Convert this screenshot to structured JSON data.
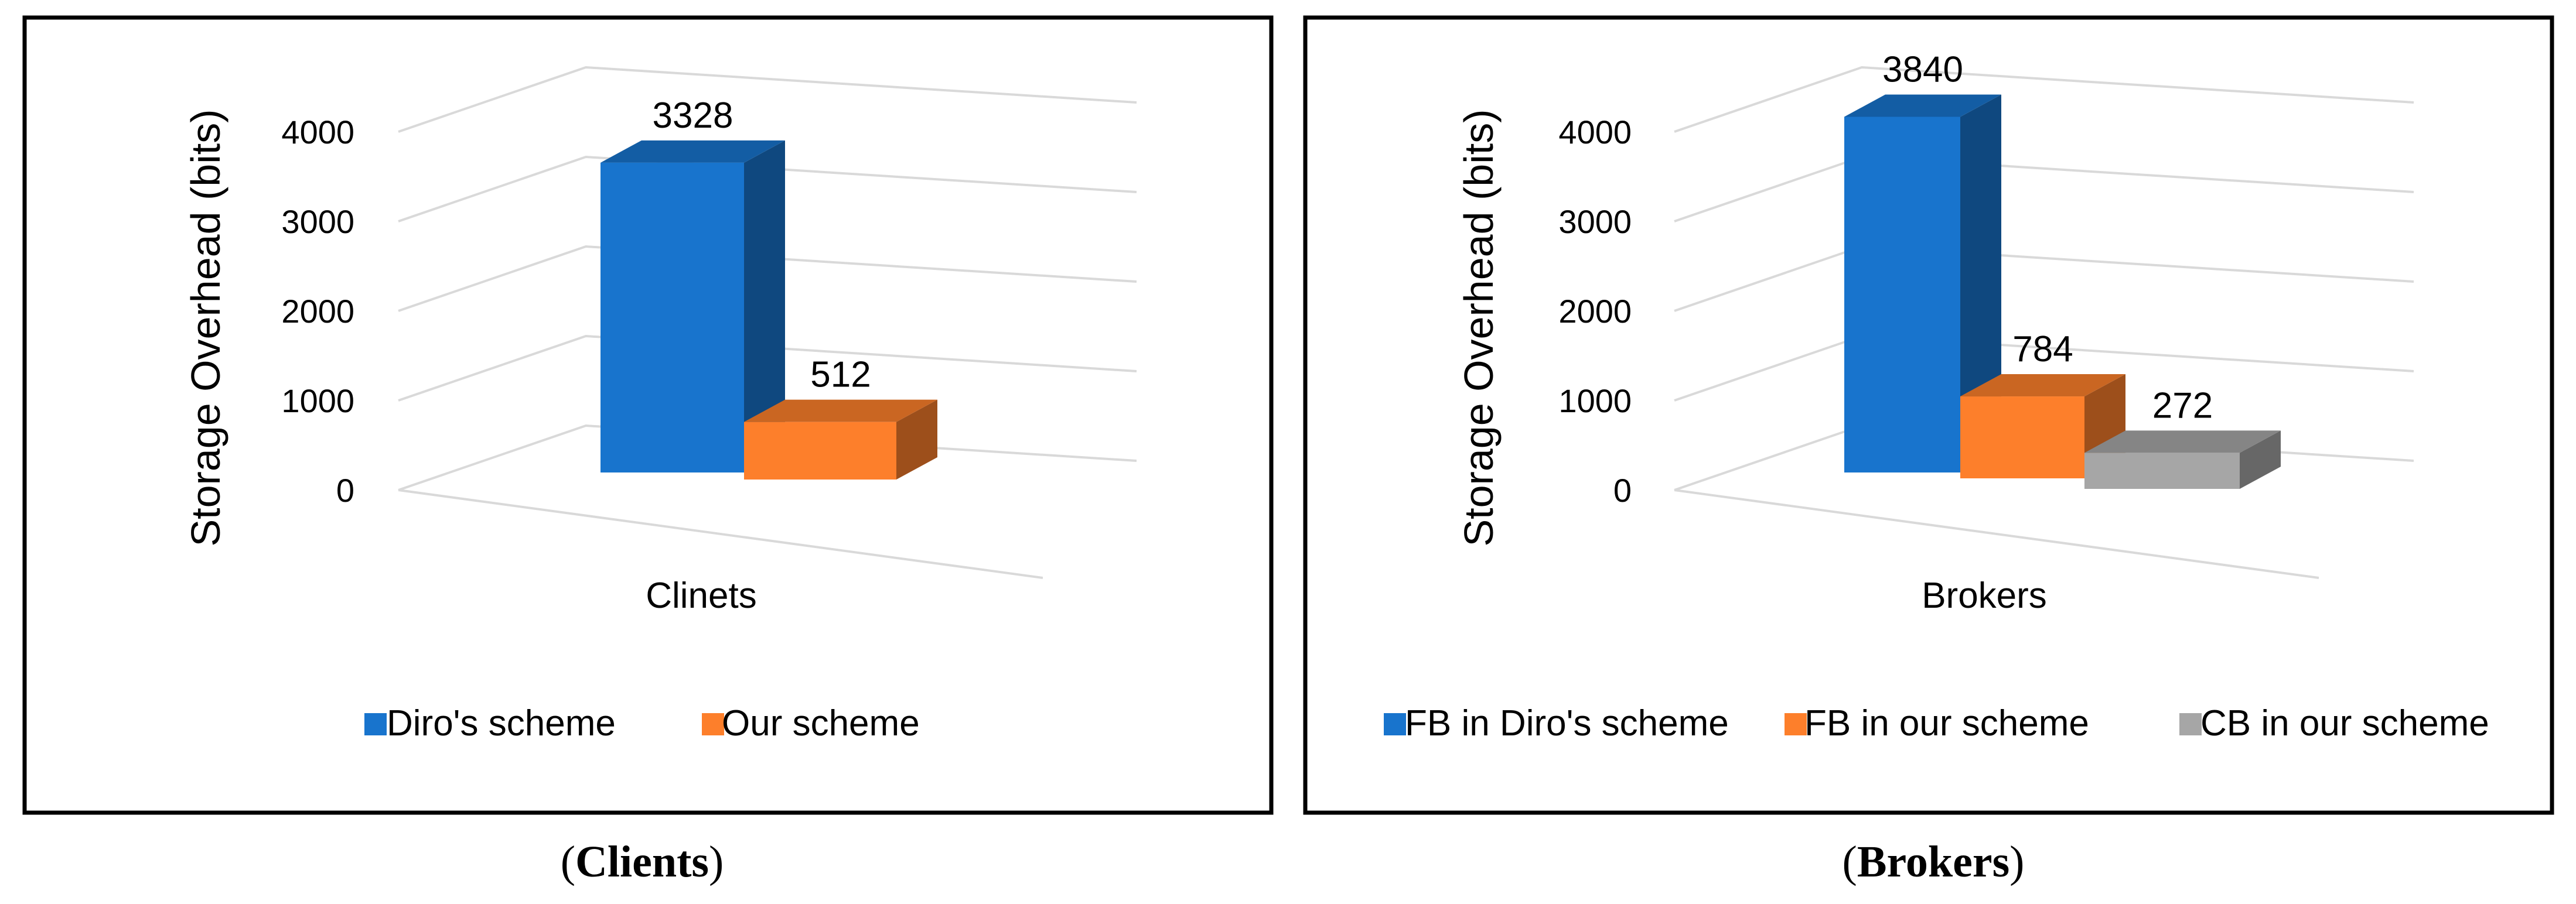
{
  "chart_data": [
    {
      "type": "bar",
      "ylabel": "Storage Overhead (bits)",
      "xlabel": "Clinets",
      "categories": [
        "Clinets"
      ],
      "series": [
        {
          "name": "Diro's scheme",
          "values": [
            3328
          ],
          "color": "#1874cd"
        },
        {
          "name": "Our scheme",
          "values": [
            512
          ],
          "color": "#fd7f2b"
        }
      ],
      "ylim": [
        0,
        4000
      ],
      "yticks": [
        "0",
        "1000",
        "2000",
        "3000",
        "4000"
      ],
      "grid": true,
      "legend": "bottom",
      "caption_open": "(",
      "caption_bold": "Clients",
      "caption_close": ")"
    },
    {
      "type": "bar",
      "ylabel": "Storage Overhead (bits)",
      "xlabel": "Brokers",
      "categories": [
        "Brokers"
      ],
      "series": [
        {
          "name": "FB in Diro's scheme",
          "values": [
            3840
          ],
          "color": "#1874cd"
        },
        {
          "name": "FB in our scheme",
          "values": [
            784
          ],
          "color": "#fd7f2b"
        },
        {
          "name": "CB in our scheme",
          "values": [
            272
          ],
          "color": "#a6a6a6"
        }
      ],
      "ylim": [
        0,
        4000
      ],
      "yticks": [
        "0",
        "1000",
        "2000",
        "3000",
        "4000"
      ],
      "grid": true,
      "legend": "bottom",
      "caption_open": "(",
      "caption_bold": "Brokers",
      "caption_close": ")"
    }
  ]
}
